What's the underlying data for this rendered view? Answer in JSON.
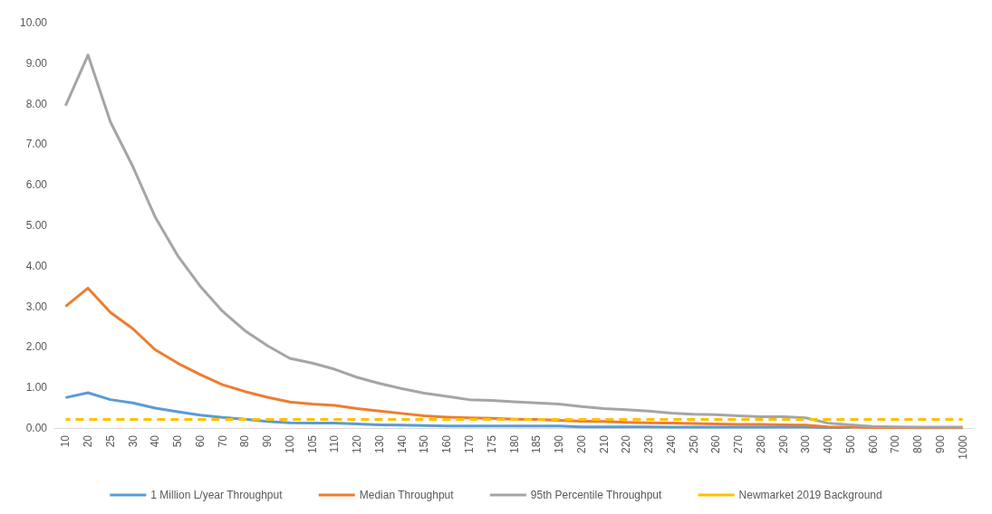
{
  "chart_data": {
    "type": "line",
    "categories": [
      "10",
      "20",
      "25",
      "30",
      "40",
      "50",
      "60",
      "70",
      "80",
      "90",
      "100",
      "105",
      "110",
      "120",
      "130",
      "140",
      "150",
      "160",
      "170",
      "175",
      "180",
      "185",
      "190",
      "200",
      "210",
      "220",
      "230",
      "240",
      "250",
      "260",
      "270",
      "280",
      "290",
      "300",
      "400",
      "500",
      "600",
      "700",
      "800",
      "900",
      "1000"
    ],
    "series": [
      {
        "name": "1 Million L/year Throughput",
        "color": "#5b9bd5",
        "values": [
          0.75,
          0.87,
          0.7,
          0.62,
          0.49,
          0.4,
          0.32,
          0.26,
          0.22,
          0.16,
          0.13,
          0.12,
          0.12,
          0.1,
          0.08,
          0.07,
          0.06,
          0.05,
          0.05,
          0.05,
          0.05,
          0.05,
          0.05,
          0.03,
          0.03,
          0.03,
          0.03,
          0.02,
          0.02,
          0.02,
          0.02,
          0.02,
          0.02,
          0.02,
          0.01,
          0.01,
          null,
          null,
          null,
          null,
          null
        ]
      },
      {
        "name": "Median Throughput",
        "color": "#ed7d31",
        "values": [
          3.0,
          3.45,
          2.85,
          2.45,
          1.93,
          1.6,
          1.32,
          1.07,
          0.9,
          0.76,
          0.64,
          0.59,
          0.56,
          0.48,
          0.42,
          0.36,
          0.3,
          0.27,
          0.25,
          0.24,
          0.22,
          0.21,
          0.19,
          0.17,
          0.16,
          0.14,
          0.13,
          0.12,
          0.11,
          0.1,
          0.09,
          0.09,
          0.08,
          0.07,
          0.03,
          0.02,
          0.01,
          0.01,
          0,
          0,
          0
        ]
      },
      {
        "name": "95th Percentile Throughput",
        "color": "#a5a5a5",
        "values": [
          7.95,
          9.2,
          7.55,
          6.45,
          5.2,
          4.25,
          3.5,
          2.88,
          2.4,
          2.03,
          1.72,
          1.6,
          1.45,
          1.25,
          1.1,
          0.97,
          0.86,
          0.78,
          0.7,
          0.68,
          0.65,
          0.62,
          0.59,
          0.53,
          0.48,
          0.45,
          0.42,
          0.37,
          0.34,
          0.33,
          0.3,
          0.28,
          0.28,
          0.25,
          0.12,
          0.08,
          0.04,
          0.03,
          0.02,
          0.02,
          0.02
        ]
      },
      {
        "name": "Newmarket 2019 Background",
        "color": "#ffc000",
        "line_style": "dashed",
        "values": [
          0.21,
          0.21,
          0.21,
          0.21,
          0.21,
          0.21,
          0.21,
          0.21,
          0.21,
          0.21,
          0.21,
          0.21,
          0.21,
          0.21,
          0.21,
          0.21,
          0.21,
          0.21,
          0.21,
          0.21,
          0.21,
          0.21,
          0.21,
          0.21,
          0.21,
          0.21,
          0.21,
          0.21,
          0.21,
          0.21,
          0.21,
          0.21,
          0.21,
          0.21,
          0.21,
          0.21,
          0.21,
          0.21,
          0.21,
          0.21,
          0.21
        ]
      }
    ],
    "ylim": [
      0,
      10
    ],
    "yticks": [
      {
        "value": 0,
        "label": "0.00"
      },
      {
        "value": 1,
        "label": "1.00"
      },
      {
        "value": 2,
        "label": "2.00"
      },
      {
        "value": 3,
        "label": "3.00"
      },
      {
        "value": 4,
        "label": "4.00"
      },
      {
        "value": 5,
        "label": "5.00"
      },
      {
        "value": 6,
        "label": "6.00"
      },
      {
        "value": 7,
        "label": "7.00"
      },
      {
        "value": 8,
        "label": "8.00"
      },
      {
        "value": 9,
        "label": "9.00"
      },
      {
        "value": 10,
        "label": "10.00"
      }
    ],
    "legend": "bottom",
    "marker": "none"
  }
}
